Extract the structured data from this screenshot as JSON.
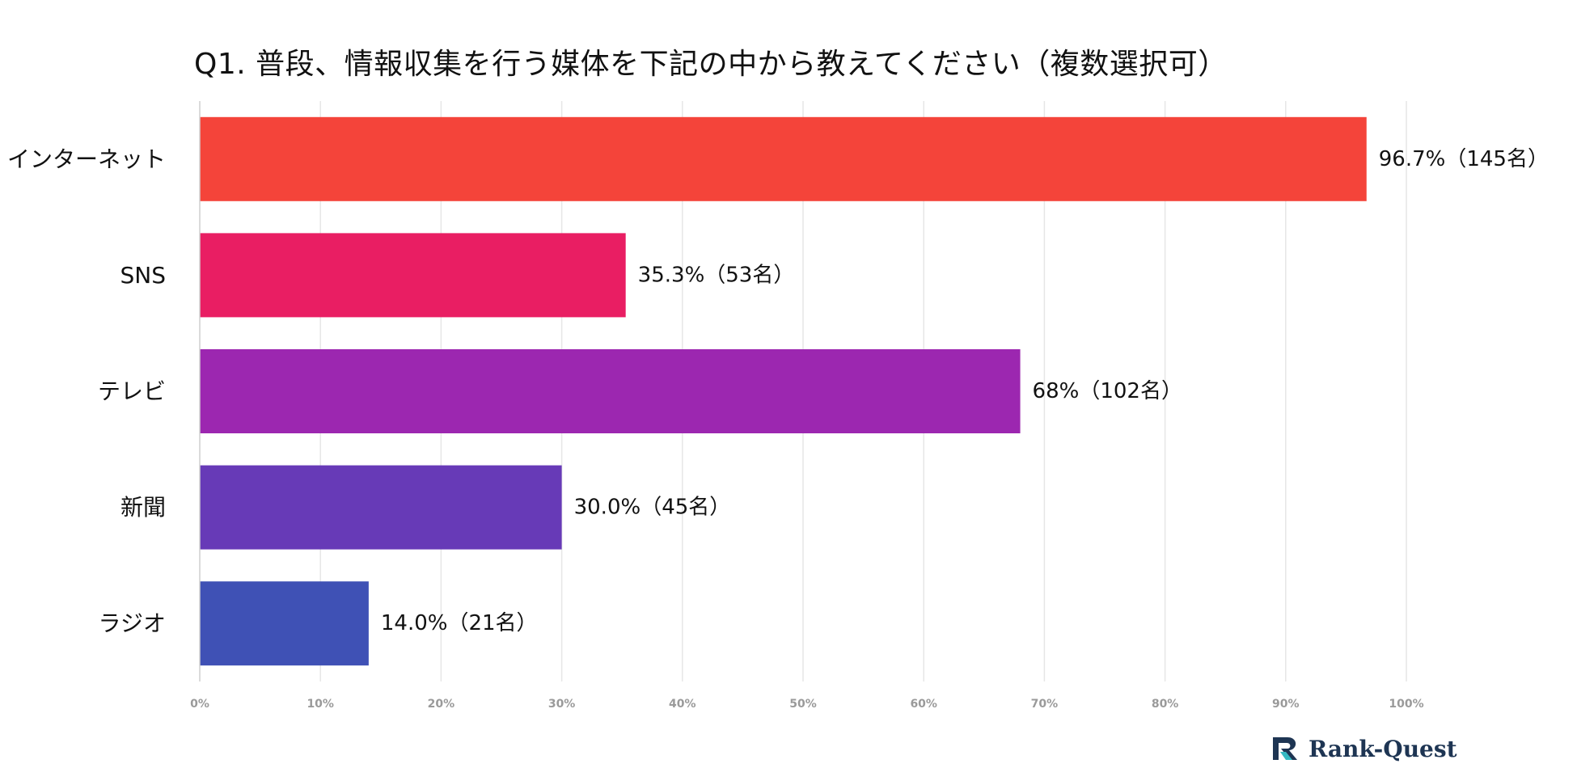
{
  "chart_data": {
    "type": "bar",
    "orientation": "horizontal",
    "title": "Q1. 普段、情報収集を行う媒体を下記の中から教えてください（複数選択可）",
    "categories": [
      "インターネット",
      "SNS",
      "テレビ",
      "新聞",
      "ラジオ"
    ],
    "values": [
      96.7,
      35.3,
      68,
      30.0,
      14.0
    ],
    "data_labels": [
      "96.7%（145名）",
      "35.3%（53名）",
      "68%（102名）",
      "30.0%（45名）",
      "14.0%（21名）"
    ],
    "colors": [
      "#f4443a",
      "#e91e63",
      "#9c27b0",
      "#673ab7",
      "#3f51b5"
    ],
    "xlim": [
      0,
      100
    ],
    "x_ticks": [
      "0%",
      "10%",
      "20%",
      "30%",
      "40%",
      "50%",
      "60%",
      "70%",
      "80%",
      "90%",
      "100%"
    ],
    "xlabel": "",
    "ylabel": "",
    "grid": true,
    "legend": "none"
  },
  "brand": {
    "name": "Rank-Quest",
    "icon": "rank-quest-logo-icon",
    "colors": {
      "accent": "#35b9c3",
      "dark": "#1e3553"
    }
  }
}
